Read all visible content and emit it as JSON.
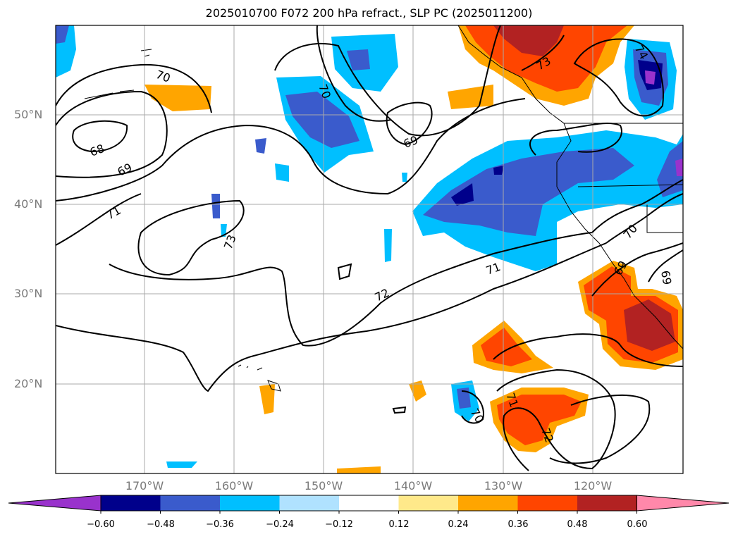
{
  "title": "2025010700 F072 200 hPa refract., SLP PC (2025011200)",
  "lat_labels": [
    "50°N",
    "40°N",
    "30°N",
    "20°N"
  ],
  "lon_labels": [
    "170°W",
    "160°W",
    "150°W",
    "140°W",
    "130°W",
    "120°W"
  ],
  "colorbar": {
    "ticks": [
      "−0.60",
      "−0.48",
      "−0.36",
      "−0.24",
      "−0.12",
      "0.12",
      "0.24",
      "0.36",
      "0.48",
      "0.60"
    ],
    "colors": [
      "#9932cc",
      "#00008b",
      "#3a5bcc",
      "#00bfff",
      "#b0e2ff",
      "#ffffff",
      "#ffe98a",
      "#ffa500",
      "#ff4500",
      "#b22222",
      "#ff88aa"
    ]
  },
  "contour_labels": [
    "70",
    "70",
    "68",
    "69",
    "69",
    "71",
    "73",
    "72",
    "71",
    "73",
    "74",
    "70",
    "69",
    "69",
    "71",
    "70",
    "72"
  ]
}
